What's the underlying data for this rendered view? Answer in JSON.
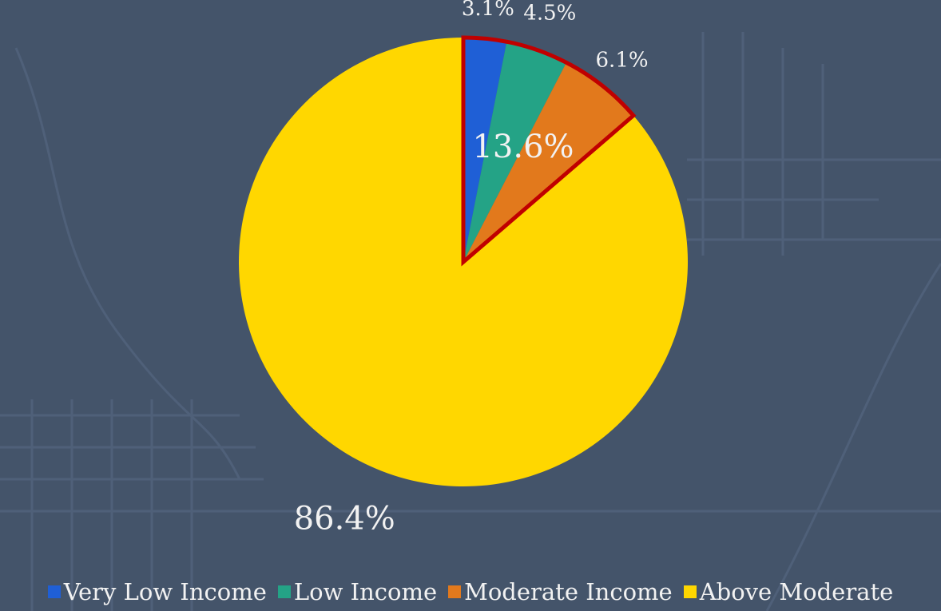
{
  "chart_data": {
    "type": "pie",
    "categories": [
      "Very Low Income",
      "Low Income",
      "Moderate Income",
      "Above Moderate"
    ],
    "values": [
      3.1,
      4.5,
      6.1,
      86.4
    ],
    "value_labels": [
      "3.1%",
      "4.5%",
      "6.1%",
      "86.4%"
    ],
    "colors": [
      "#1f5fd6",
      "#24a386",
      "#e2791c",
      "#ffd700"
    ],
    "annotations": [
      "13.6%"
    ],
    "legend": "bottom"
  }
}
